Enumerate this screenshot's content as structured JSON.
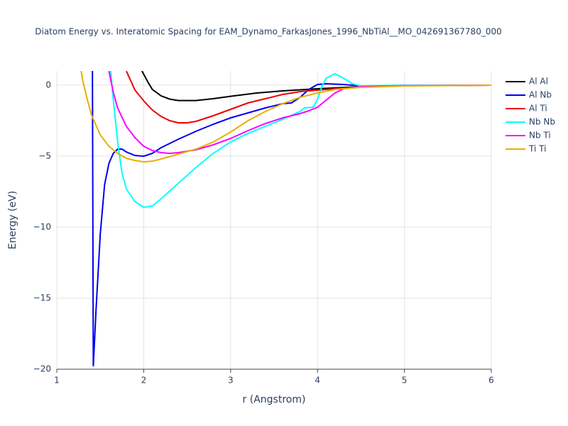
{
  "chart_data": {
    "type": "line",
    "title": "Diatom Energy vs. Interatomic Spacing for EAM_Dynamo_FarkasJones_1996_NbTiAl__MO_042691367780_000",
    "x_label": "r (Angstrom)",
    "y_label": "Energy (eV)",
    "xlim": [
      1,
      6
    ],
    "ylim": [
      -20,
      1
    ],
    "xticks": [
      1,
      2,
      3,
      4,
      5,
      6
    ],
    "yticks": [
      {
        "value": -20,
        "label": "−20"
      },
      {
        "value": -15,
        "label": "−15"
      },
      {
        "value": -10,
        "label": "−10"
      },
      {
        "value": -5,
        "label": "−5"
      },
      0
    ],
    "grid": true,
    "legend": "right",
    "series": [
      {
        "name": "Al Al",
        "color": "#000000",
        "x": [
          1.98,
          2.05,
          2.1,
          2.2,
          2.3,
          2.4,
          2.6,
          2.8,
          3.0,
          3.3,
          3.6,
          4.0,
          4.5,
          5.0,
          6.0
        ],
        "values": [
          1,
          0.2,
          -0.3,
          -0.75,
          -0.98,
          -1.08,
          -1.08,
          -0.95,
          -0.78,
          -0.55,
          -0.4,
          -0.25,
          -0.1,
          -0.03,
          0
        ]
      },
      {
        "name": "Al Nb",
        "color": "#0000ee",
        "x": [
          1.41,
          1.42,
          1.45,
          1.5,
          1.55,
          1.6,
          1.65,
          1.7,
          1.75,
          1.8,
          1.9,
          2.0,
          2.1,
          2.2,
          2.4,
          2.6,
          2.8,
          3.0,
          3.2,
          3.4,
          3.6,
          3.7,
          3.8,
          3.9,
          4.0,
          4.1,
          4.3,
          4.5,
          5.0,
          6.0
        ],
        "values": [
          1,
          -19.8,
          -16,
          -10.5,
          -7,
          -5.5,
          -4.8,
          -4.5,
          -4.5,
          -4.7,
          -4.95,
          -5.0,
          -4.8,
          -4.4,
          -3.8,
          -3.25,
          -2.75,
          -2.3,
          -1.95,
          -1.6,
          -1.3,
          -1.25,
          -0.85,
          -0.3,
          0.05,
          0.1,
          0.05,
          -0.05,
          -0.02,
          0
        ]
      },
      {
        "name": "Al Ti",
        "color": "#ee0000",
        "x": [
          1.8,
          1.9,
          2.0,
          2.1,
          2.2,
          2.3,
          2.4,
          2.5,
          2.6,
          2.8,
          3.0,
          3.2,
          3.4,
          3.6,
          3.8,
          4.0,
          4.3,
          4.6,
          5.0,
          6.0
        ],
        "values": [
          1,
          -0.35,
          -1.1,
          -1.75,
          -2.2,
          -2.5,
          -2.65,
          -2.65,
          -2.55,
          -2.15,
          -1.7,
          -1.25,
          -0.95,
          -0.65,
          -0.45,
          -0.35,
          -0.2,
          -0.08,
          -0.02,
          0
        ]
      },
      {
        "name": "Nb Nb",
        "color": "#00ffff",
        "x": [
          1.62,
          1.65,
          1.7,
          1.75,
          1.8,
          1.9,
          2.0,
          2.1,
          2.2,
          2.4,
          2.6,
          2.8,
          3.0,
          3.2,
          3.4,
          3.6,
          3.8,
          3.85,
          3.95,
          4.0,
          4.05,
          4.1,
          4.2,
          4.3,
          4.4,
          4.5,
          5.0,
          6.0
        ],
        "values": [
          1,
          -1,
          -4,
          -6.2,
          -7.3,
          -8.2,
          -8.6,
          -8.5,
          -8.0,
          -6.9,
          -5.8,
          -4.8,
          -4.0,
          -3.4,
          -2.9,
          -2.4,
          -1.85,
          -1.6,
          -1.55,
          -1.0,
          -0.1,
          0.5,
          0.8,
          0.5,
          0.1,
          -0.05,
          0,
          0
        ]
      },
      {
        "name": "Nb Ti",
        "color": "#ff00ff",
        "x": [
          1.6,
          1.65,
          1.7,
          1.8,
          1.9,
          2.0,
          2.1,
          2.2,
          2.3,
          2.4,
          2.6,
          2.8,
          3.0,
          3.2,
          3.4,
          3.6,
          3.8,
          3.9,
          4.0,
          4.1,
          4.2,
          4.3,
          4.5,
          5.0,
          6.0
        ],
        "values": [
          1,
          -0.5,
          -1.6,
          -2.9,
          -3.7,
          -4.3,
          -4.6,
          -4.75,
          -4.8,
          -4.75,
          -4.55,
          -4.2,
          -3.75,
          -3.2,
          -2.7,
          -2.3,
          -2.0,
          -1.8,
          -1.55,
          -1.05,
          -0.55,
          -0.25,
          -0.1,
          -0.03,
          0
        ]
      },
      {
        "name": "Ti Ti",
        "color": "#e6b000",
        "x": [
          1.28,
          1.3,
          1.35,
          1.4,
          1.5,
          1.6,
          1.7,
          1.8,
          1.9,
          2.0,
          2.1,
          2.2,
          2.4,
          2.6,
          2.8,
          3.0,
          3.2,
          3.4,
          3.6,
          3.8,
          4.0,
          4.2,
          4.5,
          5.0,
          6.0
        ],
        "values": [
          1,
          0.3,
          -1.0,
          -2.1,
          -3.5,
          -4.3,
          -4.8,
          -5.15,
          -5.3,
          -5.4,
          -5.35,
          -5.2,
          -4.85,
          -4.5,
          -4.0,
          -3.3,
          -2.5,
          -1.85,
          -1.3,
          -0.85,
          -0.55,
          -0.3,
          -0.15,
          -0.05,
          0
        ]
      }
    ]
  }
}
